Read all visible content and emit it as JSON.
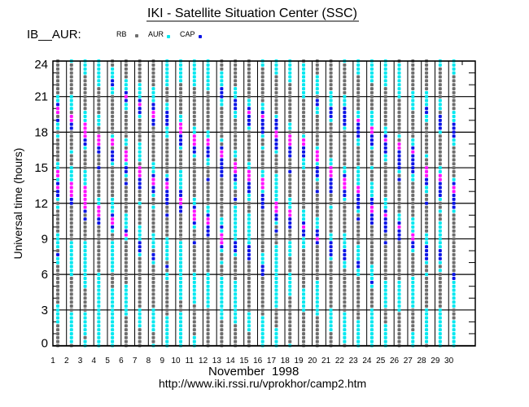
{
  "chart_data": {
    "type": "scatter",
    "title": "IKI - Satellite Situation Center (SSC)",
    "station": "IB__AUR:",
    "ylabel": "Universal time (hours)",
    "xlabel_month": "November",
    "xlabel_year": "1998",
    "footer_url": "http://www.iki.rssi.ru/vprokhor/camp2.htm",
    "ylim": [
      0,
      24
    ],
    "yticks": [
      0,
      3,
      6,
      9,
      12,
      15,
      18,
      21,
      24
    ],
    "xticks": [
      1,
      2,
      3,
      4,
      5,
      6,
      7,
      8,
      9,
      10,
      11,
      12,
      13,
      14,
      15,
      16,
      17,
      18,
      19,
      20,
      21,
      22,
      23,
      24,
      25,
      26,
      27,
      28,
      29,
      30
    ],
    "legend": [
      {
        "key": "g",
        "label": "RB"
      },
      {
        "key": "c",
        "label": "AUR"
      },
      {
        "key": "b",
        "label": "CAP"
      }
    ],
    "colors": {
      "g": "#6e6e6e",
      "c": "#00e8f0",
      "b": "#0a14e6",
      "m": "#ff10ff",
      "axis": "#000000"
    },
    "sampling": "20-minute samples from 24 h down to 0 h; 9 samples per 3-hour block",
    "days": [
      "ggggggggg ccbmmgbcc gcggggggc cmmcbmbbc gcggggggc cccgbccgg ggggggggc ccccggggg g",
      "cgggggggg ccccgmmbb gggggcggg ccccmmmmb bgggggggg gcccccccc cgggggggg gcccccccc g",
      "ccccggggg ggggcccmm mmbbcgggg gccccmmmm mmbgbgggg gcccccccc ccccggggg gccccccgc c",
      "cccccccgg gggggcccg gmmmbbggg bgggggggc cmmmbbggg ggggggggg ccccccccc ccccccccc c",
      "ggcccbbcc ggggggggg gcmmgbbbc ggggggggc cccbmmbcg gcccccccc ggggccccc ccccccccc c",
      "gggggcccb mbccggggg ggccgmmmc bbcgbgggg gggccccbm cgggggggg gggcccccc ccggggggg g",
      "ggggggccc cbmbbcggg gggcccccg mmmbbbggg cgggggccc cbbbcgggg ggggggggg cccccgggg g",
      "gggggggcc ccbbmmbbg ggggggggc ccbmmbbcg gcggggggc cccgbbcgg ggggggggg ccccccggg c",
      "cccccccgg ggccbbbbc ccggggggg ggcbmmbbb bggbggggg ccccccgbg ccggggggg ggccccccc c",
      "ccccccggg gggggccmm mbbbcgggg gcccccbbm mbbgggggg gcccccccc cccccccgg gcccccccc c",
      "cccccccgg ggggggggc cmmmbbcgg ggggggggc cbmmmbcgg gbggggggg ccccccccg gggggggcc c",
      "ccccccccg ggggggggg ccmmbbbcc gggbggggg gccbmmbbb ggggggggg ccccccccc ggggggggg g",
      "gggccccbb bccgggggg ggcgbmmbb bbbgggggg ggggccbcm mmbcggcgg gcccccccc cccgggggg g",
      "gggggggcc cbbbccggg gggggccgm mmbbccggb gcccccccc cbbbcgggg ggccccccc ccccggggg g",
      "ggggggggg gccbmbbbc ggggggggc cmmmbbbcc gggcccccc ccbbbbggg ggggggggg gcccccggg g",
      "ccggggggg ggccbmbbb bcggcgggg gccmmmcbb bbggggggg ggggcccbb bgggggggg ggccccccc c",
      "ccccggggg gggggcbbb mmbbbcggg ggccccccc mmmbbcgbg ggccccccc ccccccccc gggggcccc c",
      "ccccccggg gggggggcc gmmmbbbgg gbggggggc ccmmbbbgg gccccgggg ccccccggg ggggggggg c",
      "gcccccccc cgggggggg gcmmbbbcc cgggggggg ggcccbmbb cccgggggg ggggccccc cgggggggg g",
      "ggggccccc gbbccgggg ggggcmmmc bbbcggbgg ggggcccbb mbggggggg ggccccccc ccggggggg g",
      "ggggggggc cccbbbcgg gggggggcc mmmbbbbgg gcggggggc cbbbbcggg ggggggggg ccccccggg g",
      "cgggggggg cccbbbbbc ggggggggg ccbmmmbbc ggggggggc cccbbbccg ggggggggg gcccccccc g",
      "ccccggggg ggggccmbb bbccggggg cccccmmbb bbcgbgggg ggccccbbc cgggggggg gggcccccc c",
      "ccccccggg ggggccccm mbbbcgggg cgggccccb bmmbbbggg gggggggcc ccbcggggg ccccccccc c",
      "cccccccgg ggggggggc cbmbbbccg ggggggggc ccbmbbbbg gbggggggg ggccccccc ggggccccc c",
      "gcccccccc cgggggggg gcgmmbbbb bcgbggggg gggccbmbb bgggggggg ggccccccc cgggggggg g",
      "ggggggggc ccccggggg ggccbmbbb bbccggggg ggggccccm mbbcggggg gcccccccc ggggggccc c",
      "ggggggggc cccbbccgg ggggggcgg mmmbbccgg bgggggggc ccbbbbcgg cgggggggg ccccccccc g",
      "ccggggggg gcccgbbbb cgggggggg ccmmbbbbc ggcggcccc cccbbbcgc ggggggggg ccccccccc c",
      "ccccggggg ggggcccbb bbccggggg gggcbmmbb bbcgggggg ggggggggg bbccccccc gggcccccc c"
    ]
  }
}
